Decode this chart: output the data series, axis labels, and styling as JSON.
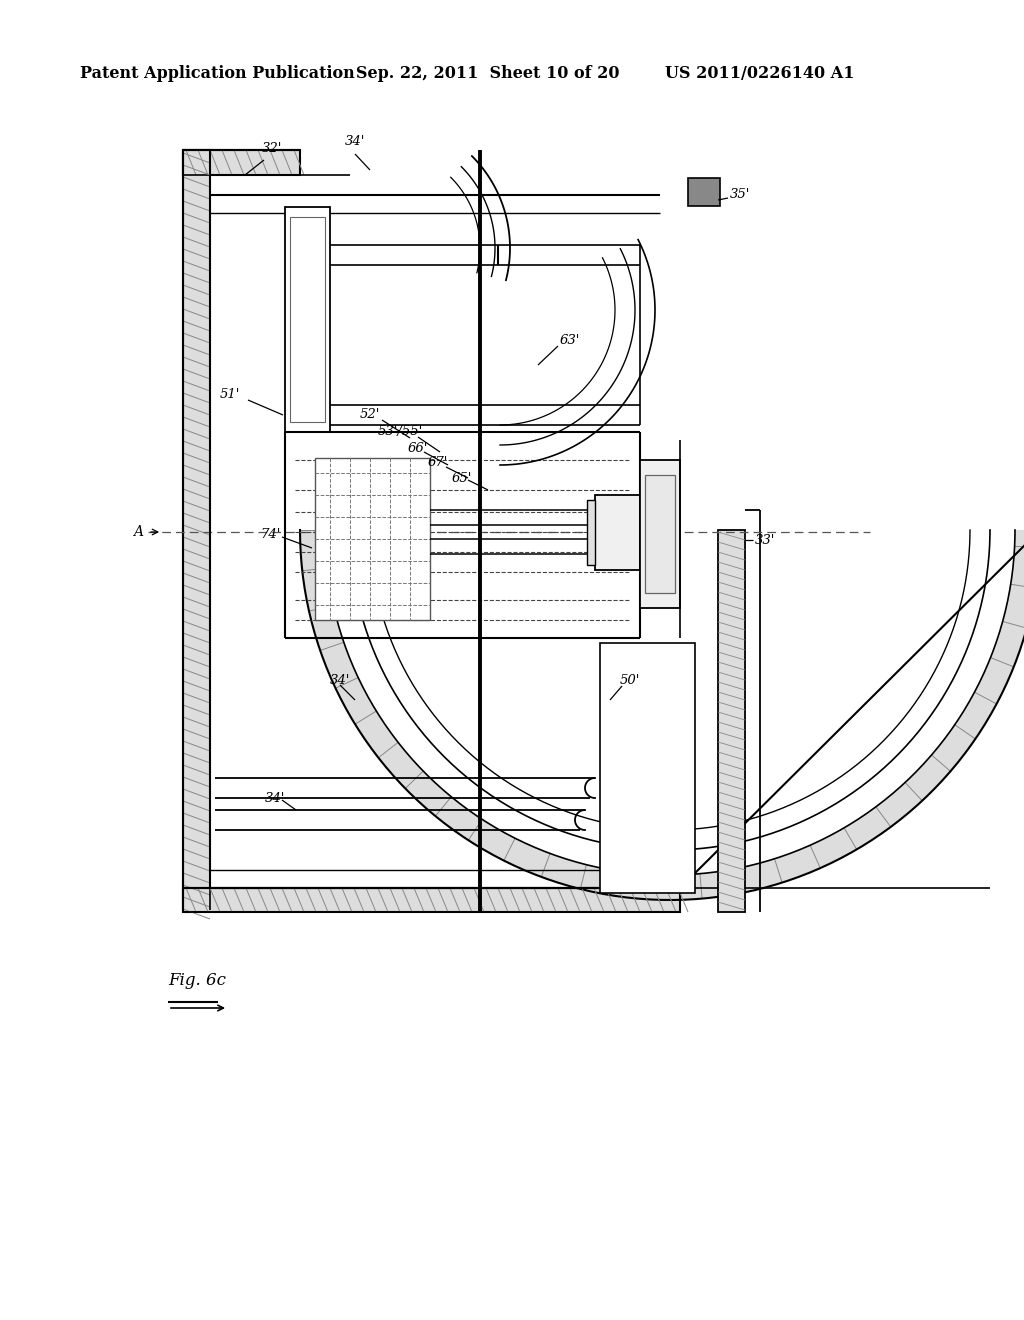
{
  "header_left": "Patent Application Publication",
  "header_mid": "Sep. 22, 2011  Sheet 10 of 20",
  "header_right": "US 2011/0226140 A1",
  "figure_label": "Fig. 6c",
  "bg_color": "#ffffff",
  "lc": "#000000",
  "hatch_color": "#888888",
  "header_fontsize": 11.5,
  "fig_label_fontsize": 12,
  "label_fontsize": 9.5
}
